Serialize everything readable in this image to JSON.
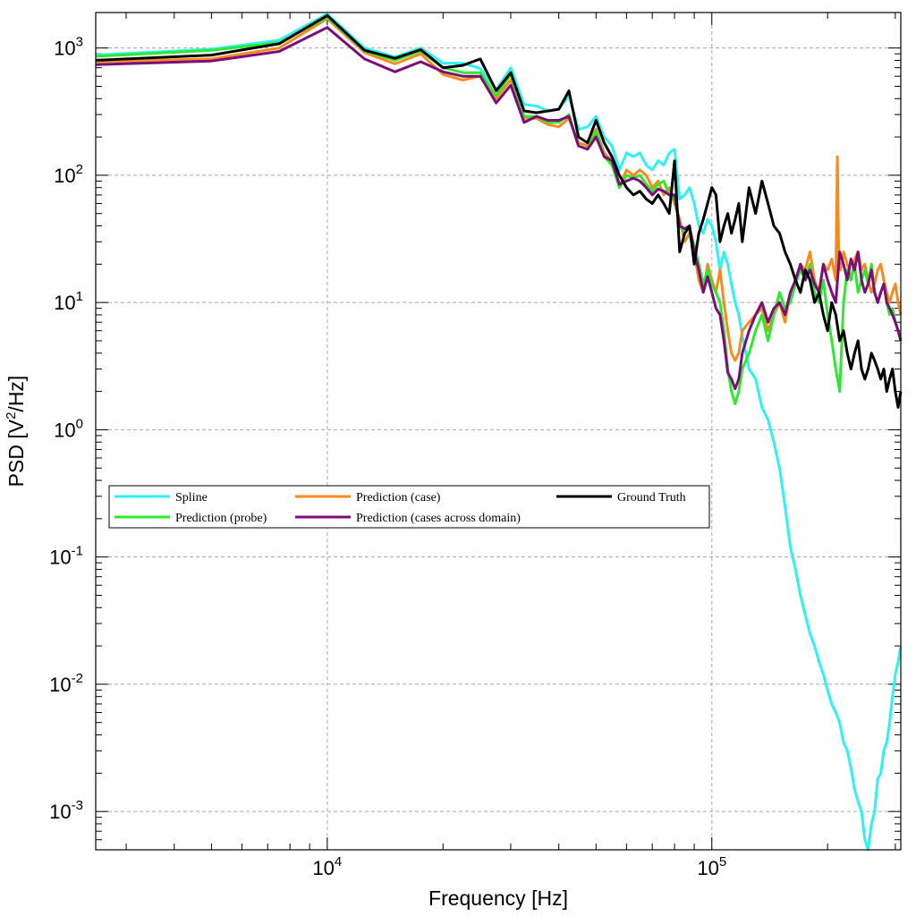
{
  "chart_data": {
    "type": "line",
    "xlabel": "Frequency [Hz]",
    "ylabel": "PSD [V²/Hz]",
    "ylabel_parts": {
      "prefix": "PSD [V",
      "sup": "2",
      "suffix": "/Hz]"
    },
    "x_scale": "log",
    "y_scale": "log",
    "xlim": [
      2500,
      310000
    ],
    "ylim": [
      0.0005,
      1900
    ],
    "grid": true,
    "legend_position": "center-left",
    "x_ticks": [
      {
        "base": "10",
        "exp": "4",
        "value": 10000
      },
      {
        "base": "10",
        "exp": "5",
        "value": 100000
      }
    ],
    "y_ticks": [
      {
        "base": "10",
        "exp": "3",
        "value": 1000
      },
      {
        "base": "10",
        "exp": "2",
        "value": 100
      },
      {
        "base": "10",
        "exp": "1",
        "value": 10
      },
      {
        "base": "10",
        "exp": "0",
        "value": 1
      },
      {
        "base": "10",
        "exp": "-1",
        "value": 0.1
      },
      {
        "base": "10",
        "exp": "-2",
        "value": 0.01
      },
      {
        "base": "10",
        "exp": "-3",
        "value": 0.001
      }
    ],
    "series": [
      {
        "name": "Spline",
        "color": "#2ef2f2",
        "x": [
          2500,
          5000,
          7500,
          10000,
          12500,
          15000,
          17500,
          20000,
          22500,
          25000,
          27500,
          30000,
          32500,
          35000,
          37500,
          40000,
          42500,
          45000,
          47500,
          50000,
          52500,
          55000,
          57500,
          60000,
          62500,
          65000,
          67500,
          70000,
          72500,
          75000,
          77500,
          80000,
          82500,
          85000,
          87500,
          90000,
          92500,
          95000,
          97500,
          100000,
          102500,
          105000,
          107500,
          110000,
          112500,
          115000,
          117500,
          120000,
          125000,
          130000,
          135000,
          140000,
          145000,
          150000,
          155000,
          160000,
          165000,
          170000,
          175000,
          180000,
          185000,
          190000,
          195000,
          200000,
          205000,
          210000,
          215000,
          220000,
          225000,
          230000,
          235000,
          240000,
          245000,
          250000,
          255000,
          260000,
          265000,
          270000,
          275000,
          280000,
          285000,
          290000,
          295000,
          300000,
          305000,
          310000
        ],
        "y": [
          880,
          980,
          1150,
          1850,
          1000,
          850,
          1000,
          760,
          760,
          690,
          470,
          700,
          360,
          350,
          320,
          330,
          420,
          230,
          240,
          290,
          200,
          170,
          110,
          150,
          140,
          150,
          120,
          110,
          130,
          120,
          150,
          160,
          65,
          70,
          80,
          60,
          40,
          35,
          45,
          40,
          30,
          18,
          25,
          20,
          14,
          10,
          8,
          5.5,
          3,
          2.5,
          1.5,
          1.2,
          0.8,
          0.5,
          0.25,
          0.12,
          0.08,
          0.05,
          0.035,
          0.025,
          0.02,
          0.015,
          0.012,
          0.009,
          0.007,
          0.006,
          0.005,
          0.0035,
          0.003,
          0.0022,
          0.0015,
          0.0012,
          0.001,
          0.0006,
          0.0005,
          0.0008,
          0.001,
          0.0018,
          0.002,
          0.003,
          0.0035,
          0.005,
          0.008,
          0.012,
          0.015,
          0.02
        ]
      },
      {
        "name": "Prediction (case)",
        "color": "#f58b1f",
        "x": [
          2500,
          5000,
          7500,
          10000,
          12500,
          15000,
          17500,
          20000,
          22500,
          25000,
          27500,
          30000,
          32500,
          35000,
          37500,
          40000,
          42500,
          45000,
          47500,
          50000,
          52500,
          55000,
          57500,
          60000,
          62500,
          65000,
          67500,
          70000,
          72500,
          75000,
          77500,
          80000,
          82500,
          85000,
          87500,
          90000,
          92500,
          95000,
          97500,
          100000,
          102500,
          105000,
          107500,
          110000,
          112500,
          115000,
          117500,
          120000,
          125000,
          130000,
          135000,
          140000,
          145000,
          150000,
          155000,
          160000,
          165000,
          170000,
          175000,
          180000,
          185000,
          190000,
          195000,
          200000,
          205000,
          210000,
          212000,
          214000,
          216000,
          220000,
          225000,
          230000,
          235000,
          240000,
          245000,
          250000,
          255000,
          260000,
          265000,
          270000,
          275000,
          280000,
          285000,
          290000,
          295000,
          300000,
          305000,
          310000
        ],
        "y": [
          780,
          820,
          1000,
          1700,
          920,
          750,
          900,
          620,
          560,
          600,
          400,
          560,
          280,
          280,
          250,
          240,
          280,
          180,
          170,
          230,
          150,
          130,
          80,
          110,
          100,
          110,
          100,
          80,
          90,
          70,
          80,
          60,
          45,
          30,
          35,
          25,
          15,
          12,
          20,
          15,
          12,
          18,
          10,
          6,
          4,
          3.5,
          4,
          6,
          7,
          8,
          9,
          6,
          8,
          10,
          7,
          12,
          15,
          20,
          18,
          25,
          15,
          12,
          20,
          18,
          22,
          15,
          140,
          20,
          18,
          25,
          20,
          15,
          22,
          25,
          18,
          20,
          15,
          12,
          14,
          18,
          20,
          15,
          12,
          10,
          12,
          14,
          10,
          8
        ]
      },
      {
        "name": "Ground Truth",
        "color": "#000000",
        "x": [
          2500,
          5000,
          7500,
          10000,
          12500,
          15000,
          17500,
          20000,
          22500,
          25000,
          27500,
          30000,
          32500,
          35000,
          37500,
          40000,
          42500,
          45000,
          47500,
          50000,
          52500,
          55000,
          57500,
          60000,
          62500,
          65000,
          67500,
          70000,
          72500,
          75000,
          77500,
          80000,
          82500,
          85000,
          87500,
          90000,
          92500,
          95000,
          97500,
          100000,
          102500,
          105000,
          107500,
          110000,
          112500,
          115000,
          117500,
          120000,
          125000,
          130000,
          135000,
          140000,
          145000,
          150000,
          155000,
          160000,
          165000,
          170000,
          175000,
          180000,
          185000,
          190000,
          195000,
          200000,
          205000,
          210000,
          215000,
          220000,
          225000,
          230000,
          235000,
          240000,
          245000,
          250000,
          255000,
          260000,
          265000,
          270000,
          275000,
          280000,
          285000,
          290000,
          295000,
          300000,
          305000,
          310000
        ],
        "y": [
          800,
          880,
          1080,
          1800,
          960,
          830,
          970,
          700,
          730,
          820,
          460,
          640,
          320,
          310,
          320,
          330,
          460,
          200,
          180,
          270,
          180,
          140,
          100,
          80,
          70,
          75,
          65,
          60,
          70,
          60,
          50,
          130,
          25,
          35,
          40,
          20,
          35,
          45,
          60,
          80,
          70,
          30,
          40,
          50,
          35,
          45,
          60,
          30,
          80,
          50,
          90,
          60,
          40,
          35,
          25,
          20,
          15,
          12,
          18,
          15,
          10,
          12,
          8,
          6,
          10,
          8,
          5,
          6,
          4,
          3,
          4,
          5,
          3,
          2.5,
          3,
          4,
          3.5,
          3,
          2.5,
          3,
          2,
          2.5,
          3,
          2,
          1.5,
          2
        ]
      },
      {
        "name": "Prediction (probe)",
        "color": "#2ee82e",
        "x": [
          2500,
          5000,
          7500,
          10000,
          12500,
          15000,
          17500,
          20000,
          22500,
          25000,
          27500,
          30000,
          32500,
          35000,
          37500,
          40000,
          42500,
          45000,
          47500,
          50000,
          52500,
          55000,
          57500,
          60000,
          62500,
          65000,
          67500,
          70000,
          72500,
          75000,
          77500,
          80000,
          82500,
          85000,
          87500,
          90000,
          92500,
          95000,
          97500,
          100000,
          102500,
          105000,
          107500,
          110000,
          112500,
          115000,
          117500,
          120000,
          125000,
          130000,
          135000,
          140000,
          145000,
          150000,
          155000,
          160000,
          165000,
          170000,
          175000,
          180000,
          185000,
          190000,
          195000,
          200000,
          205000,
          210000,
          215000,
          220000,
          225000,
          230000,
          235000,
          240000,
          245000,
          250000,
          255000,
          260000,
          265000,
          270000,
          275000,
          280000,
          285000,
          290000,
          295000,
          300000,
          305000,
          310000
        ],
        "y": [
          860,
          960,
          1100,
          1750,
          950,
          800,
          950,
          700,
          640,
          640,
          420,
          620,
          290,
          290,
          260,
          260,
          300,
          170,
          160,
          220,
          140,
          120,
          80,
          100,
          95,
          100,
          85,
          75,
          85,
          90,
          70,
          65,
          40,
          35,
          38,
          28,
          20,
          14,
          18,
          14,
          12,
          10,
          6,
          3,
          2,
          1.6,
          2,
          3,
          4,
          6,
          8,
          5,
          8,
          12,
          9,
          10,
          14,
          18,
          15,
          20,
          12,
          10,
          15,
          8,
          5,
          3,
          2,
          10,
          18,
          15,
          20,
          12,
          15,
          18,
          14,
          20,
          12,
          10,
          12,
          14,
          10,
          8,
          9,
          7,
          6,
          5
        ]
      },
      {
        "name": "Prediction (cases across domain)",
        "color": "#7a0d7a",
        "x": [
          2500,
          5000,
          7500,
          10000,
          12500,
          15000,
          17500,
          20000,
          22500,
          25000,
          27500,
          30000,
          32500,
          35000,
          37500,
          40000,
          42500,
          45000,
          47500,
          50000,
          52500,
          55000,
          57500,
          60000,
          62500,
          65000,
          67500,
          70000,
          72500,
          75000,
          77500,
          80000,
          82500,
          85000,
          87500,
          90000,
          92500,
          95000,
          97500,
          100000,
          102500,
          105000,
          107500,
          110000,
          112500,
          115000,
          117500,
          120000,
          125000,
          130000,
          135000,
          140000,
          145000,
          150000,
          155000,
          160000,
          165000,
          170000,
          175000,
          180000,
          185000,
          190000,
          195000,
          200000,
          205000,
          210000,
          215000,
          220000,
          225000,
          230000,
          235000,
          240000,
          245000,
          250000,
          255000,
          260000,
          265000,
          270000,
          275000,
          280000,
          285000,
          290000,
          295000,
          300000,
          305000,
          310000
        ],
        "y": [
          740,
          790,
          940,
          1450,
          820,
          650,
          780,
          650,
          600,
          600,
          370,
          510,
          260,
          290,
          270,
          270,
          290,
          170,
          160,
          200,
          140,
          130,
          85,
          90,
          95,
          90,
          80,
          70,
          78,
          75,
          70,
          70,
          40,
          38,
          40,
          25,
          18,
          12,
          16,
          12,
          9,
          8,
          5,
          2.8,
          2.5,
          2.1,
          2.5,
          4,
          6,
          8,
          10,
          7,
          9,
          10,
          8,
          12,
          15,
          20,
          15,
          18,
          14,
          12,
          20,
          15,
          12,
          10,
          25,
          20,
          15,
          22,
          18,
          25,
          15,
          12,
          14,
          18,
          12,
          10,
          12,
          14,
          10,
          9,
          8,
          7,
          6,
          5
        ]
      }
    ],
    "legend_order": [
      0,
      1,
      2,
      3,
      4
    ]
  }
}
